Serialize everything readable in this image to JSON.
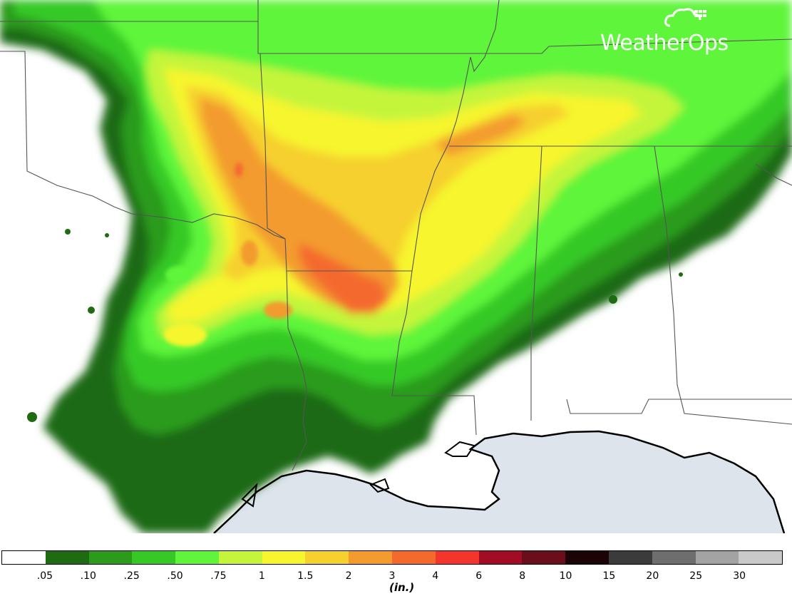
{
  "brand": {
    "name": "WeatherOps",
    "icon": "cloud-satellite-icon"
  },
  "legend": {
    "units_label": "(in.)",
    "ticks": [
      ".05",
      ".10",
      ".25",
      ".50",
      ".75",
      "1",
      "1.5",
      "2",
      "3",
      "4",
      "6",
      "8",
      "10",
      "15",
      "20",
      "25",
      "30"
    ],
    "colors": [
      "#ffffff",
      "#1e6b12",
      "#2c9b1c",
      "#36c925",
      "#5ff53a",
      "#c5f53a",
      "#f6f52e",
      "#f6d02e",
      "#f39b2d",
      "#f46a2d",
      "#f3352b",
      "#a00d24",
      "#6b0e1c",
      "#1a0405",
      "#3b3b3b",
      "#6e6e6e",
      "#a3a3a3",
      "#c9c9c9"
    ]
  },
  "map": {
    "water_color": "#dde4ec",
    "land_color": "#ffffff",
    "border_color": "#555555"
  }
}
